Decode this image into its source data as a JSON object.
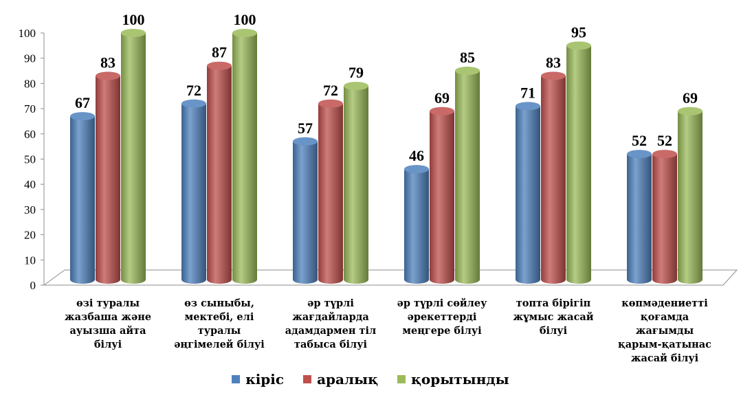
{
  "chart_data": {
    "type": "bar",
    "categories": [
      "өзі туралы жазбаша және ауызша айта білуі",
      "өз сыныбы, мектебі, елі туралы әңгімелей білуі",
      "әр түрлі жағдайларда адамдармен тіл табыса білуі",
      "әр түрлі сөйлеу әрекеттерді меңгере білуі",
      "топта бірігіп жұмыс жасай білуі",
      "көпмәдениетті қоғамда жағымды қарым-қатынас жасай білуі"
    ],
    "category_lines": [
      [
        "өзі туралы",
        "жазбаша және",
        "ауызша айта",
        "білуі"
      ],
      [
        "өз сыныбы,",
        "мектебі, елі",
        "туралы",
        "әңгімелей білуі"
      ],
      [
        "әр түрлі",
        "жағдайларда",
        "адамдармен тіл",
        "табыса білуі"
      ],
      [
        "әр түрлі сөйлеу",
        "әрекеттерді",
        "меңгере білуі"
      ],
      [
        "топта бірігіп",
        "жұмыс жасай",
        "білуі"
      ],
      [
        "көпмәдениетті",
        "қоғамда",
        "жағымды",
        "қарым-қатынас",
        "жасай білуі"
      ]
    ],
    "series": [
      {
        "name": "кіріс",
        "color": "#4f81bd",
        "values": [
          67,
          72,
          57,
          46,
          71,
          52
        ]
      },
      {
        "name": "аралық",
        "color": "#c0504d",
        "values": [
          83,
          87,
          72,
          69,
          83,
          52
        ]
      },
      {
        "name": "қорытынды",
        "color": "#9bbb59",
        "values": [
          100,
          100,
          79,
          85,
          95,
          69
        ]
      }
    ],
    "yticks": [
      "0",
      "10",
      "20",
      "30",
      "40",
      "50",
      "60",
      "70",
      "80",
      "90",
      "100"
    ],
    "ylim": [
      0,
      100
    ],
    "legend_position": "bottom"
  }
}
